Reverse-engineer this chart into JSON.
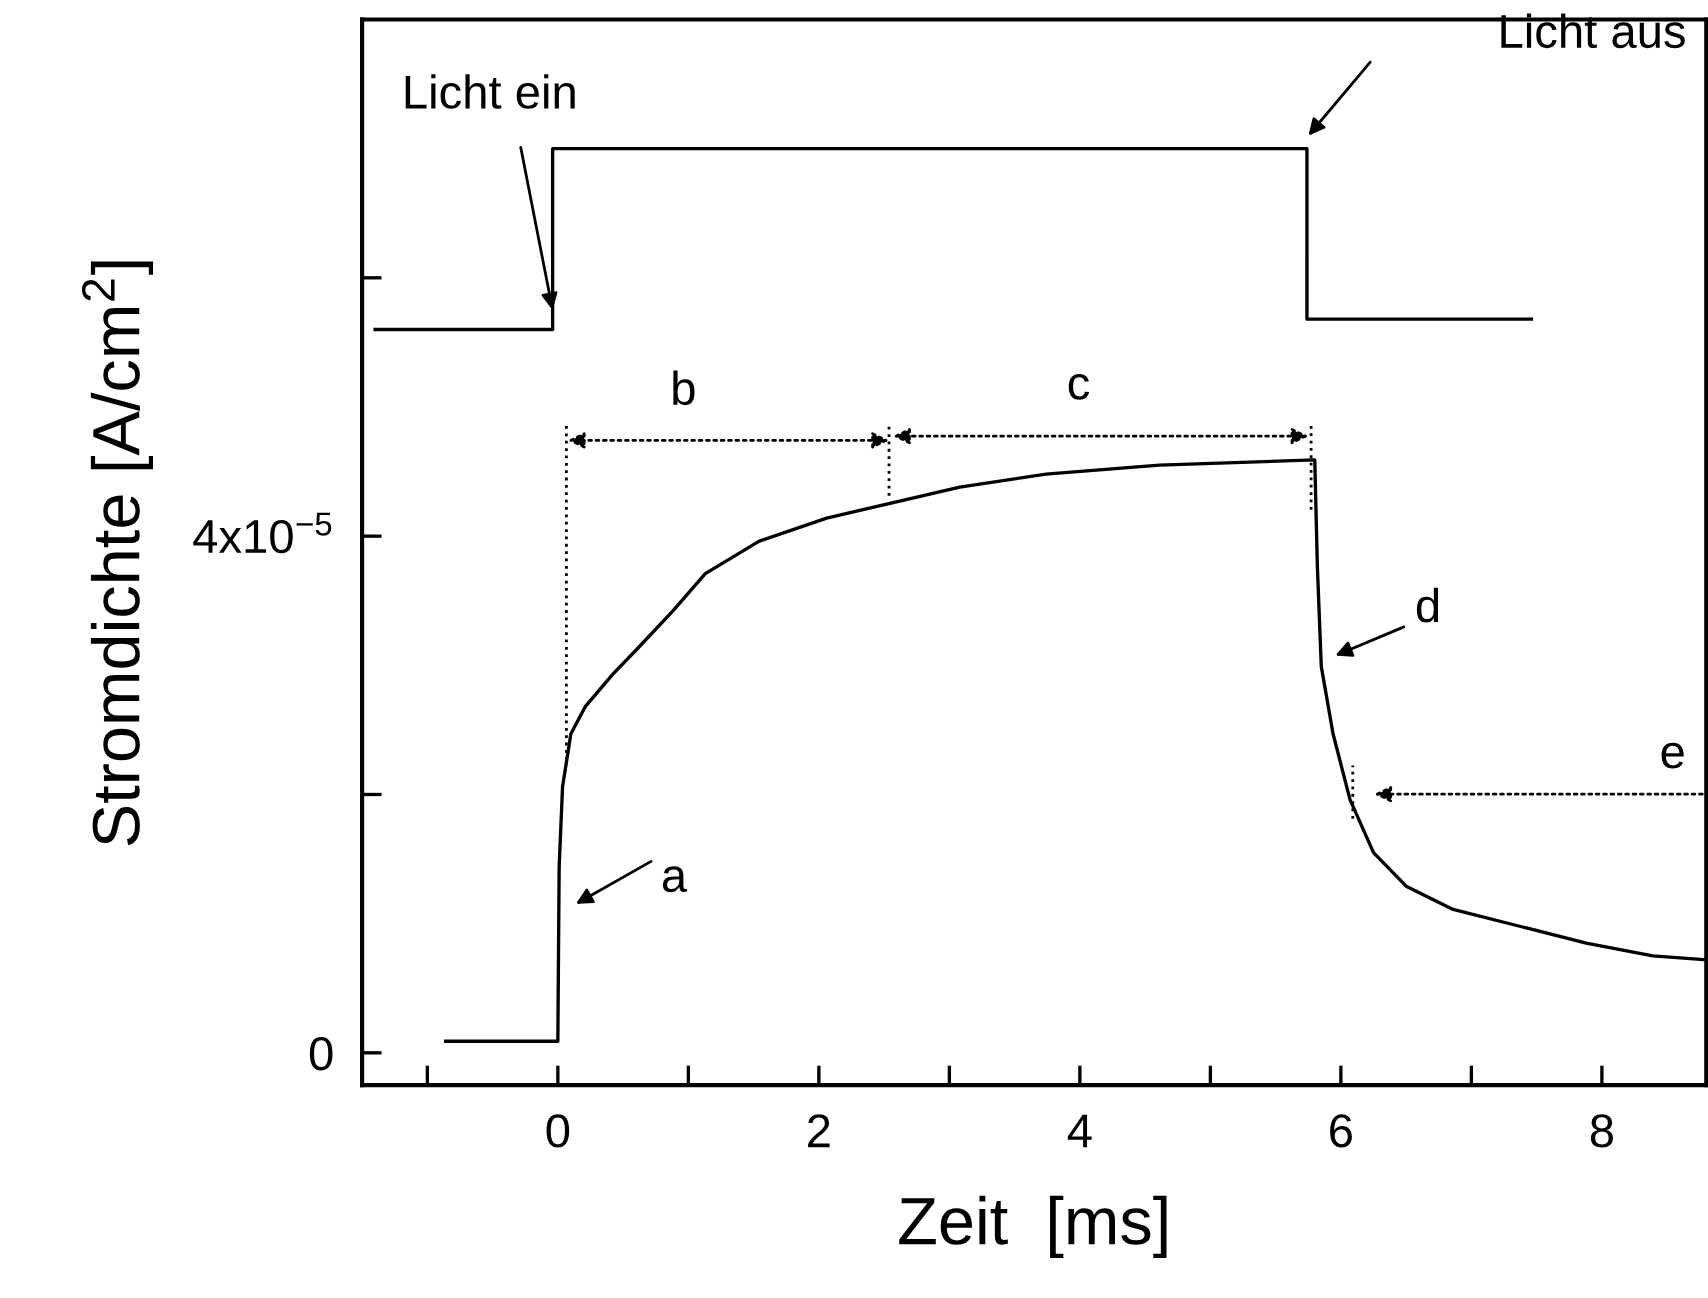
{
  "chart_data": {
    "type": "line",
    "xlabel": "Zeit  [ms]",
    "ylabel": "Stromdichte [A/cm$^{2}$]",
    "xlim": [
      -1.5,
      8.8
    ],
    "xticks": [
      {
        "value": -1,
        "label": null
      },
      0,
      {
        "value": 1,
        "label": null
      },
      2,
      {
        "value": 3,
        "label": null
      },
      4,
      {
        "value": 5,
        "label": null
      },
      6,
      {
        "value": 7,
        "label": null
      },
      8
    ],
    "ylim": [
      -2.5e-06,
      8e-05
    ],
    "yticks": [
      {
        "value": 0,
        "label": "0"
      },
      {
        "value": 2e-05,
        "label": null
      },
      {
        "value": 4e-05,
        "label": "4x10$^{−5}$"
      },
      {
        "value": 6e-05,
        "label": null
      }
    ],
    "grid": false,
    "series": [
      {
        "color": "#000000",
        "x": [
          -1.4,
          -0.04,
          -0.04,
          5.74,
          5.74,
          7.46
        ],
        "values": [
          5.6e-05,
          5.6e-05,
          7e-05,
          7e-05,
          5.68e-05,
          5.68e-05
        ]
      },
      {
        "color": "#000000",
        "x": [
          -0.86,
          0,
          0.01,
          0.036,
          0.1,
          0.21,
          0.42,
          0.62,
          0.88,
          1.13,
          1.54,
          2.06,
          2.57,
          3.08,
          3.74,
          4.61,
          5.8,
          5.82,
          5.85,
          5.94,
          6.07,
          6.25,
          6.5,
          6.86,
          7.37,
          7.88,
          8.39,
          8.8
        ],
        "values": [
          9e-07,
          9e-07,
          1.44e-05,
          2.06e-05,
          2.47e-05,
          2.68e-05,
          2.93e-05,
          3.14e-05,
          3.42e-05,
          3.71e-05,
          3.96e-05,
          4.14e-05,
          4.26e-05,
          4.38e-05,
          4.48e-05,
          4.55e-05,
          4.59e-05,
          3.76e-05,
          2.99e-05,
          2.47e-05,
          1.96e-05,
          1.55e-05,
          1.29e-05,
          1.11e-05,
          9.8e-06,
          8.5e-06,
          7.5e-06,
          7.2e-06
        ]
      }
    ],
    "annotations": [
      {
        "text": "Licht ein",
        "x": -0.04,
        "y": 5.75e-05
      },
      "Licht aus",
      "a",
      "b",
      "c",
      "d",
      "e"
    ]
  }
}
